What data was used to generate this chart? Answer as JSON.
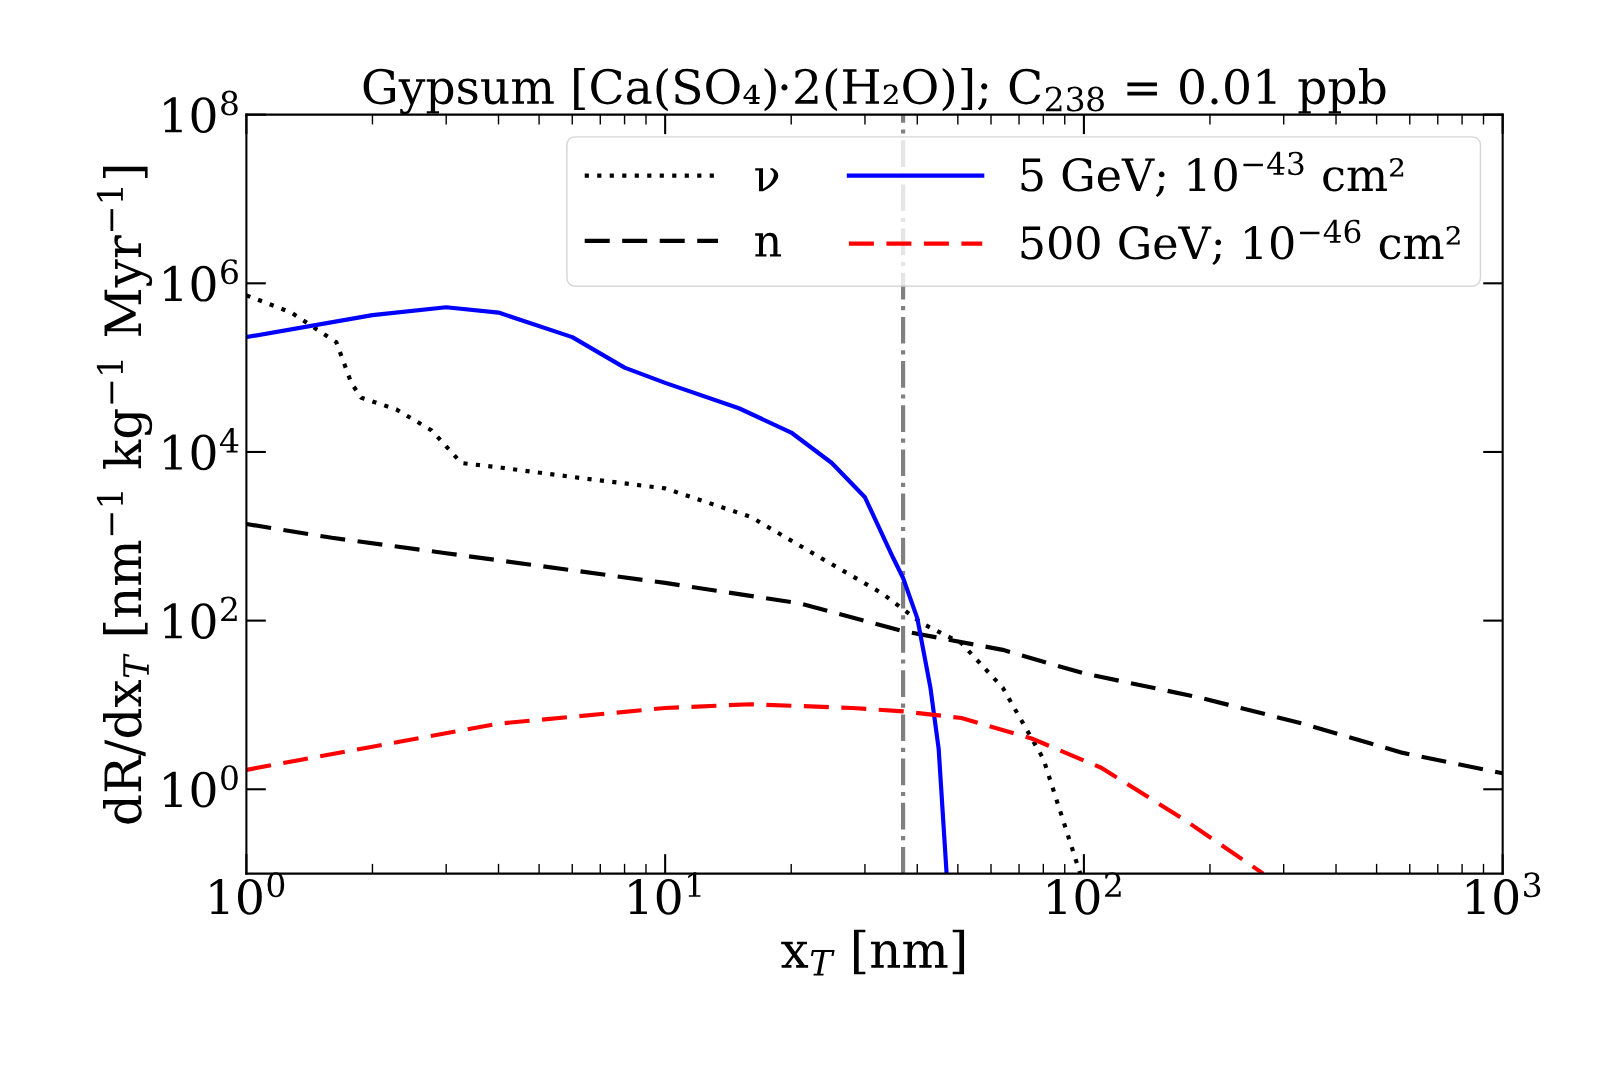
{
  "chart_data": {
    "type": "line",
    "title": "Gypsum [Ca(SO₄)·2(H₂O)]; C$_{238}$ = 0.01 ppb",
    "xlabel": "x$_{T}$ [nm]",
    "ylabel": "dR/dx$_{T}$ [nm$^{−1}$ kg$^{−1}$ Myr$^{−1}$]",
    "log": "xy",
    "xlim": [
      1,
      1000
    ],
    "ylim": [
      0.1,
      100000000
    ],
    "xticks": [
      {
        "value": 1,
        "label": "10$^{0}$"
      },
      {
        "value": 10,
        "label": "10$^{1}$"
      },
      {
        "value": 100,
        "label": "10$^{2}$"
      },
      {
        "value": 1000,
        "label": "10$^{3}$"
      }
    ],
    "yticks": [
      {
        "value": 1,
        "label": "10$^{0}$"
      },
      {
        "value": 100,
        "label": "10$^{2}$"
      },
      {
        "value": 10000,
        "label": "10$^{4}$"
      },
      {
        "value": 1000000,
        "label": "10$^{6}$"
      },
      {
        "value": 100000000,
        "label": "10$^{8}$"
      }
    ],
    "legend": "top right",
    "grid": false,
    "marker": "none",
    "ref_lines": [
      {
        "axis": "x",
        "value": 37,
        "label": null,
        "color": "#808080",
        "line_style": "dashdot"
      }
    ],
    "series": [
      {
        "name": "ν",
        "color": "#000000",
        "line_style": "dotted",
        "x": [
          1,
          1.28,
          1.64,
          1.78,
          1.88,
          2.28,
          2.77,
          3.26,
          4.07,
          6.3,
          10,
          16,
          23.6,
          33,
          41,
          51,
          64,
          80,
          98
        ],
        "values": [
          720000,
          450000,
          200000,
          66000,
          44000,
          32000,
          18000,
          7400,
          6500,
          4900,
          3700,
          1700,
          550,
          210,
          93,
          54,
          16,
          2.3,
          0.1
        ]
      },
      {
        "name": "n",
        "color": "#000000",
        "line_style": "dashed",
        "x": [
          1,
          1.6,
          3,
          10,
          21,
          37,
          64,
          99,
          192,
          333,
          578,
          1000
        ],
        "values": [
          1400,
          960,
          630,
          280,
          160,
          75,
          45,
          24,
          12,
          6,
          2.7,
          1.55
        ]
      },
      {
        "name": "5 GeV; 10$^{−43}$ cm²",
        "color": "#0000ff",
        "line_style": "solid",
        "x": [
          1,
          2,
          3,
          4,
          6,
          8,
          10,
          15,
          20,
          25,
          30,
          35,
          37,
          40,
          43,
          45,
          47
        ],
        "values": [
          230000,
          420000,
          520000,
          450000,
          230000,
          100000,
          66000,
          33000,
          17000,
          7400,
          2900,
          560,
          320,
          107,
          16,
          3,
          0.1
        ]
      },
      {
        "name": "500 GeV; 10$^{−46}$ cm²",
        "color": "#ff0000",
        "line_style": "dashed",
        "x": [
          1,
          2,
          4,
          10,
          16,
          28,
          37,
          51,
          75,
          110,
          172,
          268
        ],
        "values": [
          1.7,
          3.2,
          6,
          9.2,
          10.2,
          9.2,
          8.4,
          7,
          4,
          1.8,
          0.45,
          0.1
        ]
      }
    ]
  }
}
